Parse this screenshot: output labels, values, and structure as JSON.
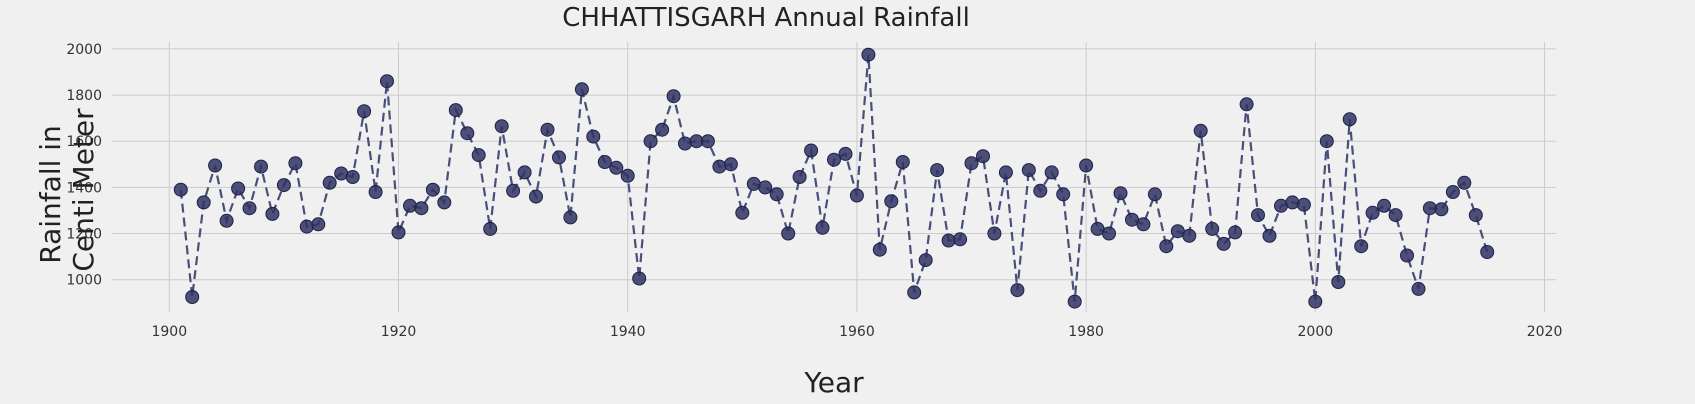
{
  "chart_data": {
    "type": "line",
    "title": "CHHATTISGARH Annual Rainfall",
    "xlabel": "Year",
    "ylabel": [
      "Rainfall in",
      "Centi Meter"
    ],
    "xlim": [
      1895,
      2021
    ],
    "ylim": [
      860,
      2030
    ],
    "xticks": [
      1900,
      1920,
      1940,
      1960,
      1980,
      2000,
      2020
    ],
    "yticks": [
      1000,
      1200,
      1400,
      1600,
      1800,
      2000
    ],
    "grid": true,
    "line_color": "#4a4e7a",
    "marker_color": "#2f3363",
    "background": "#f0f0f0",
    "series": [
      {
        "x": [
          1901,
          1902,
          1903,
          1904,
          1905,
          1906,
          1907,
          1908,
          1909,
          1910,
          1911,
          1912,
          1913,
          1914,
          1915,
          1916,
          1917,
          1918,
          1919,
          1920,
          1921,
          1922,
          1923,
          1924,
          1925,
          1926,
          1927,
          1928,
          1929,
          1930,
          1931,
          1932,
          1933,
          1934,
          1935,
          1936,
          1937,
          1938,
          1939,
          1940,
          1941,
          1942,
          1943,
          1944,
          1945,
          1946,
          1947,
          1948,
          1949,
          1950,
          1951,
          1952,
          1953,
          1954,
          1955,
          1956,
          1957,
          1958,
          1959,
          1960,
          1961,
          1962,
          1963,
          1964,
          1965,
          1966,
          1967,
          1968,
          1969,
          1970,
          1971,
          1972,
          1973,
          1974,
          1975,
          1976,
          1977,
          1978,
          1979,
          1980,
          1981,
          1982,
          1983,
          1984,
          1985,
          1986,
          1987,
          1988,
          1989,
          1990,
          1991,
          1992,
          1993,
          1994,
          1995,
          1996,
          1997,
          1998,
          1999,
          2000,
          2001,
          2002,
          2003,
          2004,
          2005,
          2006,
          2007,
          2008,
          2009,
          2010,
          2011,
          2012,
          2013,
          2014,
          2015
        ],
        "y": [
          1390,
          925,
          1335,
          1495,
          1255,
          1395,
          1310,
          1490,
          1285,
          1410,
          1505,
          1230,
          1240,
          1420,
          1460,
          1445,
          1730,
          1380,
          1860,
          1205,
          1320,
          1310,
          1390,
          1335,
          1735,
          1635,
          1540,
          1220,
          1665,
          1385,
          1465,
          1360,
          1650,
          1530,
          1270,
          1825,
          1620,
          1510,
          1485,
          1450,
          1005,
          1600,
          1650,
          1795,
          1590,
          1600,
          1600,
          1490,
          1500,
          1290,
          1415,
          1400,
          1370,
          1200,
          1445,
          1560,
          1225,
          1520,
          1545,
          1365,
          1975,
          1130,
          1340,
          1510,
          945,
          1085,
          1475,
          1170,
          1175,
          1505,
          1535,
          1200,
          1465,
          955,
          1475,
          1385,
          1465,
          1370,
          905,
          1495,
          1220,
          1200,
          1375,
          1260,
          1240,
          1370,
          1145,
          1210,
          1190,
          1645,
          1220,
          1155,
          1205,
          1760,
          1280,
          1190,
          1320,
          1335,
          1325,
          905,
          1600,
          990,
          1695,
          1145,
          1290,
          1320,
          1280,
          1105,
          960,
          1310,
          1305,
          1380,
          1420,
          1280,
          1120
        ]
      }
    ]
  }
}
